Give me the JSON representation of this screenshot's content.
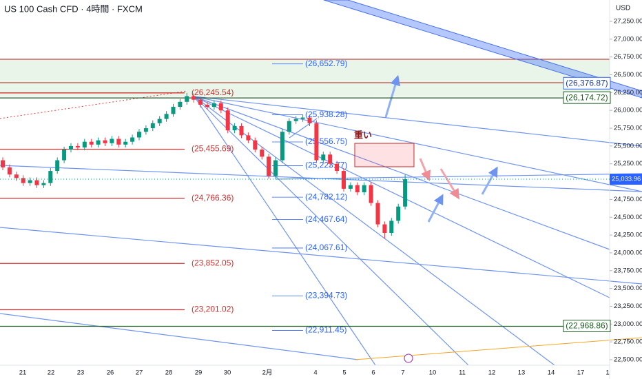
{
  "chart_data": {
    "type": "candlestick",
    "title": "US 100 Cash CFD · 4時間 · FXCM",
    "currency": "USD",
    "note": "重い",
    "xtick_labels": [
      "21",
      "22",
      "23",
      "26",
      "27",
      "28",
      "29",
      "30",
      "2月",
      "4",
      "5",
      "6",
      "7",
      "10",
      "11",
      "12",
      "13",
      "14",
      "17",
      "1"
    ],
    "ylim": [
      22374,
      27550
    ],
    "yticks": [
      {
        "value": 22500,
        "label": "22,500.00"
      },
      {
        "value": 22750,
        "label": "22,750.00"
      },
      {
        "value": 23000,
        "label": "23,000.00"
      },
      {
        "value": 23250,
        "label": "23,250.00"
      },
      {
        "value": 23500,
        "label": "23,500.00"
      },
      {
        "value": 23750,
        "label": "23,750.00"
      },
      {
        "value": 24000,
        "label": "24,000.00"
      },
      {
        "value": 24250,
        "label": "24,250.00"
      },
      {
        "value": 24500,
        "label": "24,500.00"
      },
      {
        "value": 24750,
        "label": "24,750.00"
      },
      {
        "value": 25000,
        "label": "25,000.00"
      },
      {
        "value": 25250,
        "label": "25,250.00"
      },
      {
        "value": 25500,
        "label": "25,500.00"
      },
      {
        "value": 25750,
        "label": "25,750.00"
      },
      {
        "value": 26000,
        "label": "26,000.00"
      },
      {
        "value": 26250,
        "label": "26,250.00"
      },
      {
        "value": 26500,
        "label": "26,500.00"
      },
      {
        "value": 26750,
        "label": "26,750.00"
      },
      {
        "value": 27000,
        "label": "27,000.00"
      },
      {
        "value": 27250,
        "label": "27,250.00"
      }
    ],
    "last_price": {
      "value": 25033.96,
      "label": "25,033.96"
    },
    "up_color": "#089981",
    "down_color": "#f23645",
    "open": [
      25300,
      25200,
      25100,
      25050,
      24980,
      25020,
      24950,
      24980,
      25150,
      25300,
      25450,
      25500,
      25480,
      25560,
      25520,
      25580,
      25540,
      25600,
      25520,
      25560,
      25620,
      25700,
      25750,
      25820,
      25880,
      25950,
      26050,
      26120,
      26200,
      26150,
      26080,
      26050,
      26100,
      26000,
      25720,
      25780,
      25650,
      25580,
      25450,
      25350,
      25080,
      25300,
      25700,
      25850,
      25880,
      25900,
      25820,
      25300,
      25380,
      25250,
      25150,
      24900,
      24950,
      24850,
      24950,
      24700,
      24400,
      24280,
      24450,
      24650
    ],
    "high": [
      25340,
      25240,
      25140,
      25090,
      25060,
      25060,
      25020,
      25190,
      25340,
      25490,
      25540,
      25540,
      25600,
      25600,
      25620,
      25620,
      25640,
      25640,
      25600,
      25660,
      25740,
      25790,
      25860,
      25920,
      25990,
      26090,
      26160,
      26246,
      26240,
      26190,
      26120,
      26140,
      26140,
      26040,
      25820,
      25820,
      25690,
      25620,
      25490,
      25390,
      25340,
      25740,
      25890,
      25920,
      25940,
      25940,
      25860,
      25420,
      25420,
      25290,
      25190,
      24990,
      24990,
      24990,
      24990,
      24740,
      24440,
      24490,
      24690,
      25100
    ],
    "low": [
      25160,
      25060,
      25010,
      24940,
      24940,
      24910,
      24910,
      24940,
      25110,
      25260,
      25410,
      25440,
      25440,
      25480,
      25480,
      25500,
      25500,
      25480,
      25480,
      25520,
      25580,
      25660,
      25710,
      25780,
      25840,
      25910,
      26010,
      26080,
      26110,
      26040,
      26010,
      26010,
      25960,
      25680,
      25680,
      25610,
      25540,
      25410,
      25310,
      25040,
      25040,
      25260,
      25660,
      25810,
      25840,
      25780,
      25260,
      25260,
      25210,
      25110,
      24860,
      24860,
      24810,
      24810,
      24660,
      24360,
      24200,
      24240,
      24410,
      24610
    ],
    "close": [
      25200,
      25100,
      25050,
      24980,
      25020,
      24950,
      24980,
      25150,
      25300,
      25450,
      25500,
      25480,
      25560,
      25520,
      25580,
      25540,
      25600,
      25520,
      25560,
      25620,
      25700,
      25750,
      25820,
      25880,
      25950,
      26050,
      26120,
      26200,
      26150,
      26080,
      26050,
      26100,
      26000,
      25720,
      25780,
      25650,
      25580,
      25450,
      25350,
      25080,
      25300,
      25700,
      25850,
      25880,
      25900,
      25820,
      25300,
      25380,
      25250,
      25150,
      24900,
      24950,
      24850,
      24950,
      24700,
      24400,
      24280,
      24450,
      24650,
      25034
    ],
    "red_levels": {
      "color": "#d32f2f",
      "items": [
        {
          "value": 26245.54,
          "label": "(26,245.54)"
        },
        {
          "value": 25455.69,
          "label": "(25,455.69)"
        },
        {
          "value": 24766.36,
          "label": "(24,766.36)"
        },
        {
          "value": 23852.05,
          "label": "(23,852.05)"
        },
        {
          "value": 23201.02,
          "label": "(23,201.02)"
        }
      ]
    },
    "fib_levels": {
      "color": "#2962ff",
      "items": [
        {
          "value": 26652.79,
          "label": "(26,652.79)"
        },
        {
          "value": 25938.28,
          "label": "(25,938.28)"
        },
        {
          "value": 25556.75,
          "label": "(25,556.75)"
        },
        {
          "value": 25223.77,
          "label": "(25,223.77)"
        },
        {
          "value": 24782.12,
          "label": "(24,782.12)"
        },
        {
          "value": 24467.64,
          "label": "(24,467.64)"
        },
        {
          "value": 24067.61,
          "label": "(24,067.61)"
        },
        {
          "value": 23394.73,
          "label": "(23,394.73)"
        },
        {
          "value": 22911.45,
          "label": "(22,911.45)"
        }
      ]
    },
    "green_levels": {
      "color": "#1b5e20",
      "items": [
        {
          "value": 26174.72,
          "label": "(26,174.72)"
        },
        {
          "value": 22968.86,
          "label": "(22,968.86)"
        }
      ]
    },
    "channel_label": {
      "value": 26376.87,
      "label": "(26,376.87)"
    }
  }
}
